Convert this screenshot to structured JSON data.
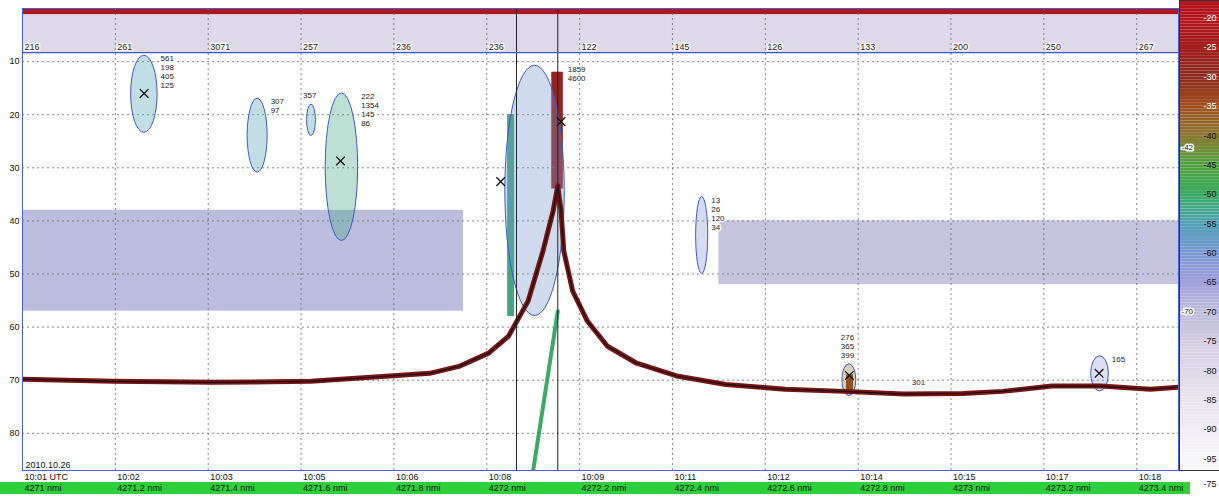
{
  "chart_data": {
    "type": "echogram",
    "date": "2010.10.26",
    "grid": true,
    "xlim": [
      4271,
      4273.49
    ],
    "xticks": [
      {
        "value": 4271,
        "label": "4271 nmi"
      },
      {
        "value": 4271.2,
        "label": "4271.2 nmi"
      },
      {
        "value": 4271.4,
        "label": "4271.4 nmi"
      },
      {
        "value": 4271.6,
        "label": "4271.6 nmi"
      },
      {
        "value": 4271.8,
        "label": "4271.8 nmi"
      },
      {
        "value": 4272,
        "label": "4272 nmi"
      },
      {
        "value": 4272.2,
        "label": "4272.2 nmi"
      },
      {
        "value": 4272.4,
        "label": "4272.4 nmi"
      },
      {
        "value": 4272.6,
        "label": "4272.6 nmi"
      },
      {
        "value": 4272.8,
        "label": "4272.8 nmi"
      },
      {
        "value": 4273,
        "label": "4273 nmi"
      },
      {
        "value": 4273.2,
        "label": "4273.2 nmi"
      },
      {
        "value": 4273.4,
        "label": "4273.4 nmi"
      }
    ],
    "time_labels": [
      "10:01 UTC",
      "10:02",
      "10:03",
      "10:05",
      "10:06",
      "10:08",
      "10:09",
      "10:11",
      "10:12",
      "10:14",
      "10:15",
      "10:17",
      "10:18"
    ],
    "ping_labels": [
      "216",
      "261",
      "3071",
      "257",
      "236",
      "236",
      "122",
      "145",
      "126",
      "133",
      "200",
      "250",
      "267"
    ],
    "ylim": [
      0,
      87
    ],
    "yticks": [
      10,
      20,
      30,
      40,
      50,
      60,
      70,
      80
    ],
    "surface_line": 8.3,
    "cursors": [
      4272.064,
      4272.153
    ],
    "seabed": {
      "color": "#7a1414",
      "x": [
        4271,
        4271.196,
        4271.409,
        4271.621,
        4271.791,
        4271.877,
        4271.94,
        4272.004,
        4272.047,
        4272.089,
        4272.121,
        4272.143,
        4272.153,
        4272.16,
        4272.166,
        4272.185,
        4272.217,
        4272.26,
        4272.323,
        4272.409,
        4272.515,
        4272.643,
        4272.77,
        4272.898,
        4273.026,
        4273.111,
        4273.217,
        4273.323,
        4273.43,
        4273.49
      ],
      "depth": [
        69.8,
        70.2,
        70.4,
        70.2,
        69.2,
        68.7,
        67.4,
        64.9,
        61.7,
        55.1,
        45.7,
        38.1,
        33.4,
        38.1,
        45.7,
        53.2,
        58.9,
        63.6,
        66.8,
        69.2,
        70.8,
        71.7,
        72.1,
        72.6,
        72.5,
        72.1,
        71.1,
        71.1,
        71.7,
        71.3
      ]
    },
    "second_echo": {
      "x": [
        4272.1,
        4272.153
      ],
      "depth": [
        87,
        57
      ],
      "sv": -50
    },
    "echo_patches": [
      {
        "x": [
          4271,
          4273.49
        ],
        "depth": [
          0,
          1.2
        ],
        "sv": -22
      },
      {
        "x": [
          4271,
          4273.49
        ],
        "depth": [
          1.2,
          8.3
        ],
        "sv": -80
      },
      {
        "x": [
          4271,
          4271.95
        ],
        "depth": [
          38,
          57
        ],
        "sv": -70
      },
      {
        "x": [
          4272.5,
          4273.49
        ],
        "depth": [
          40,
          52
        ],
        "sv": -72
      },
      {
        "x": [
          4272.045,
          4272.06
        ],
        "depth": [
          20,
          58
        ],
        "sv": -52
      },
      {
        "x": [
          4272.14,
          4272.165
        ],
        "depth": [
          12,
          34
        ],
        "sv": -28
      },
      {
        "x": [
          4272.775,
          4272.79
        ],
        "depth": [
          69,
          72
        ],
        "sv": -32
      }
    ],
    "regions": {
      "color": "#3c5ac8",
      "items": [
        {
          "x": [
            4271.234,
            4271.291
          ],
          "depth": [
            8.9,
            23.4
          ],
          "sv": -55,
          "labels": [
            "561",
            "198",
            "405",
            "125"
          ]
        },
        {
          "x": [
            4271.485,
            4271.528
          ],
          "depth": [
            17.0,
            30.9
          ],
          "sv": -55,
          "labels": [
            "307",
            "97"
          ]
        },
        {
          "x": [
            4271.613,
            4271.632
          ],
          "depth": [
            18.1,
            24.0
          ],
          "sv": -55,
          "labels": [
            "357"
          ]
        },
        {
          "x": [
            4271.653,
            4271.723
          ],
          "depth": [
            16.0,
            43.8
          ],
          "sv": -52,
          "labels": [
            "222",
            "1354",
            "145",
            "86"
          ]
        },
        {
          "x": [
            4272.04,
            4272.168
          ],
          "depth": [
            10.8,
            57.9
          ],
          "sv": -60,
          "labels": [
            "1859",
            "4600"
          ]
        },
        {
          "x": [
            4272.451,
            4272.477
          ],
          "depth": [
            35.5,
            50.0
          ],
          "sv": -62,
          "labels": [
            "13",
            "26",
            "120",
            "34"
          ]
        },
        {
          "x": [
            4272.766,
            4272.796
          ],
          "depth": [
            67.0,
            73.0
          ],
          "sv": -40,
          "labels": [
            "276",
            "365",
            "399"
          ]
        },
        {
          "x": [
            4273.302,
            4273.34
          ],
          "depth": [
            65.5,
            72.1
          ],
          "sv": -65,
          "labels": [
            "165"
          ]
        }
      ]
    },
    "markers": {
      "x": [
        4271.262,
        4271.685,
        4272.03,
        4272.16,
        4272.781,
        4273.319
      ],
      "depth": [
        16,
        28.7,
        32.6,
        21.3,
        69.1,
        68.7
      ]
    },
    "annotations": [
      {
        "x": 4272.93,
        "depth": 70.5,
        "text": "301"
      }
    ],
    "colorbar": {
      "range": [
        -97,
        -17
      ],
      "ticks": [
        -95,
        -90,
        -85,
        -80,
        -75,
        -70,
        -65,
        -60,
        -55,
        -50,
        -45,
        -40,
        -35,
        -30,
        -25,
        -20
      ],
      "stops": [
        {
          "value": -95,
          "color": "#f7f6f9"
        },
        {
          "value": -85,
          "color": "#e8e4ef"
        },
        {
          "value": -75,
          "color": "#d2cde1"
        },
        {
          "value": -70,
          "color": "#bcbcdc"
        },
        {
          "value": -65,
          "color": "#a0a0dc"
        },
        {
          "value": -60,
          "color": "#7896d2"
        },
        {
          "value": -55,
          "color": "#50a0b4"
        },
        {
          "value": -50,
          "color": "#3caa64"
        },
        {
          "value": -45,
          "color": "#50a03c"
        },
        {
          "value": -40,
          "color": "#8c7832"
        },
        {
          "value": -35,
          "color": "#a0501e"
        },
        {
          "value": -30,
          "color": "#8c2a1e"
        },
        {
          "value": -25,
          "color": "#a01e1e"
        },
        {
          "value": -20,
          "color": "#b4141e"
        }
      ],
      "markers": [
        -42,
        -70
      ],
      "bottom_label": -75
    }
  }
}
